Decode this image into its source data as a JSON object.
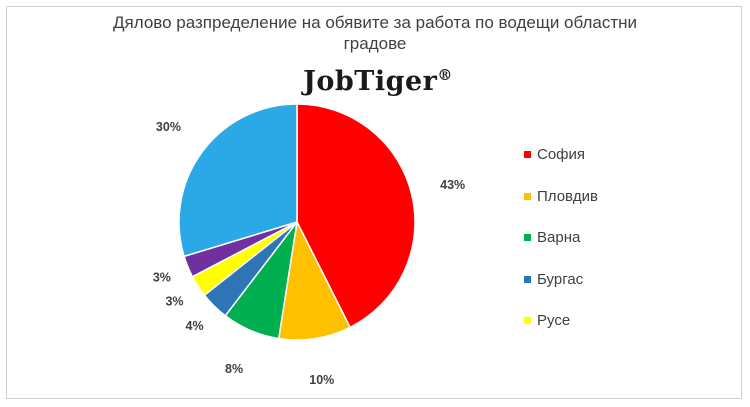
{
  "title_line1": "Дялово разпределение на обявите за работа по водещи областни",
  "title_line2": "градове",
  "logo_text": "JobTiger",
  "logo_mark": "®",
  "chart_data": {
    "type": "pie",
    "title": "Дялово разпределение на обявите за работа по водещи областни градове",
    "slices": [
      {
        "label": "София",
        "value": 43,
        "text": "43%",
        "color": "#ff0000"
      },
      {
        "label": "Пловдив",
        "value": 10,
        "text": "10%",
        "color": "#ffc000"
      },
      {
        "label": "Варна",
        "value": 8,
        "text": "8%",
        "color": "#00b050"
      },
      {
        "label": "Бургас",
        "value": 4,
        "text": "4%",
        "color": "#2e75b6"
      },
      {
        "label": "Русе",
        "value": 3,
        "text": "3%",
        "color": "#ffff00"
      },
      {
        "label": "",
        "value": 3,
        "text": "3%",
        "color": "#7030a0"
      },
      {
        "label": "",
        "value": 30,
        "text": "30%",
        "color": "#2ba9e6"
      }
    ],
    "legend": [
      "София",
      "Пловдив",
      "Варна",
      "Бургас",
      "Русе"
    ],
    "legend_position": "right"
  }
}
